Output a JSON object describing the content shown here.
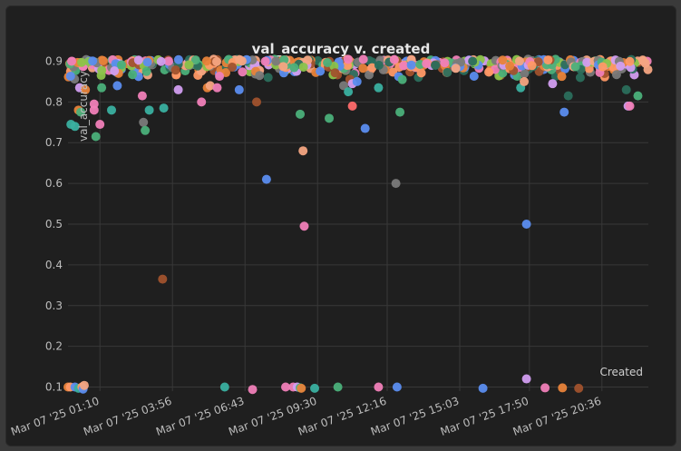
{
  "chart_data": {
    "type": "scatter",
    "title": "val_accuracy v. created",
    "xlabel": "Created",
    "ylabel": "val_accuracy",
    "ylim": [
      0.09,
      0.91
    ],
    "yticks": [
      0.9,
      0.8,
      0.7,
      0.6,
      0.5,
      0.4,
      0.3,
      0.2,
      0.1
    ],
    "xlim": [
      0.0,
      1.0
    ],
    "xticks": [
      {
        "label": "Mar 07 '25 01:10",
        "x": 0.055
      },
      {
        "label": "Mar 07 '25 03:56",
        "x": 0.18
      },
      {
        "label": "Mar 07 '25 06:43",
        "x": 0.305
      },
      {
        "label": "Mar 07 '25 09:30",
        "x": 0.43
      },
      {
        "label": "Mar 07 '25 12:16",
        "x": 0.55
      },
      {
        "label": "Mar 07 '25 15:03",
        "x": 0.675
      },
      {
        "label": "Mar 07 '25 17:50",
        "x": 0.795
      },
      {
        "label": "Mar 07 '25 20:36",
        "x": 0.92
      }
    ],
    "grid": true,
    "palette": [
      "#e8833a",
      "#5b8def",
      "#4bb07a",
      "#f07fb8",
      "#d29ef0",
      "#7a7a7a",
      "#2b6e5c",
      "#a0522d",
      "#f4a582",
      "#8bc34a",
      "#ff9966"
    ],
    "points": [
      {
        "x": 0.005,
        "y": 0.745,
        "c": "#3ab0a0"
      },
      {
        "x": 0.012,
        "y": 0.74,
        "c": "#3ab0a0"
      },
      {
        "x": 0.018,
        "y": 0.78,
        "c": "#e8833a"
      },
      {
        "x": 0.022,
        "y": 0.775,
        "c": "#4bb07a"
      },
      {
        "x": 0.02,
        "y": 0.835,
        "c": "#d29ef0"
      },
      {
        "x": 0.03,
        "y": 0.83,
        "c": "#e8833a"
      },
      {
        "x": 0.045,
        "y": 0.795,
        "c": "#f07fb8"
      },
      {
        "x": 0.045,
        "y": 0.78,
        "c": "#f07fb8"
      },
      {
        "x": 0.048,
        "y": 0.715,
        "c": "#4bb07a"
      },
      {
        "x": 0.055,
        "y": 0.745,
        "c": "#f07fb8"
      },
      {
        "x": 0.058,
        "y": 0.835,
        "c": "#4bb07a"
      },
      {
        "x": 0.075,
        "y": 0.78,
        "c": "#3ab0a0"
      },
      {
        "x": 0.085,
        "y": 0.84,
        "c": "#5b8def"
      },
      {
        "x": 0.128,
        "y": 0.815,
        "c": "#f07fb8"
      },
      {
        "x": 0.13,
        "y": 0.75,
        "c": "#7a7a7a"
      },
      {
        "x": 0.133,
        "y": 0.73,
        "c": "#4bb07a"
      },
      {
        "x": 0.14,
        "y": 0.78,
        "c": "#3ab0a0"
      },
      {
        "x": 0.165,
        "y": 0.785,
        "c": "#3ab0a0"
      },
      {
        "x": 0.163,
        "y": 0.365,
        "c": "#a0522d"
      },
      {
        "x": 0.19,
        "y": 0.83,
        "c": "#d29ef0"
      },
      {
        "x": 0.23,
        "y": 0.8,
        "c": "#f07fb8"
      },
      {
        "x": 0.24,
        "y": 0.835,
        "c": "#e8833a"
      },
      {
        "x": 0.245,
        "y": 0.84,
        "c": "#f4a582"
      },
      {
        "x": 0.257,
        "y": 0.835,
        "c": "#f07fb8"
      },
      {
        "x": 0.295,
        "y": 0.83,
        "c": "#5b8def"
      },
      {
        "x": 0.33,
        "y": 0.865,
        "c": "#7a7a7a"
      },
      {
        "x": 0.342,
        "y": 0.61,
        "c": "#5b8def"
      },
      {
        "x": 0.325,
        "y": 0.8,
        "c": "#a0522d"
      },
      {
        "x": 0.4,
        "y": 0.77,
        "c": "#4bb07a"
      },
      {
        "x": 0.405,
        "y": 0.68,
        "c": "#f4a582"
      },
      {
        "x": 0.407,
        "y": 0.495,
        "c": "#f07fb8"
      },
      {
        "x": 0.45,
        "y": 0.76,
        "c": "#4bb07a"
      },
      {
        "x": 0.475,
        "y": 0.84,
        "c": "#7a7a7a"
      },
      {
        "x": 0.483,
        "y": 0.825,
        "c": "#3ab0a0"
      },
      {
        "x": 0.49,
        "y": 0.79,
        "c": "#ff6b6b"
      },
      {
        "x": 0.49,
        "y": 0.845,
        "c": "#d29ef0"
      },
      {
        "x": 0.498,
        "y": 0.85,
        "c": "#5b8def"
      },
      {
        "x": 0.512,
        "y": 0.735,
        "c": "#5b8def"
      },
      {
        "x": 0.535,
        "y": 0.835,
        "c": "#3ab0a0"
      },
      {
        "x": 0.565,
        "y": 0.6,
        "c": "#7a7a7a"
      },
      {
        "x": 0.572,
        "y": 0.775,
        "c": "#4bb07a"
      },
      {
        "x": 0.576,
        "y": 0.855,
        "c": "#4bb07a"
      },
      {
        "x": 0.78,
        "y": 0.835,
        "c": "#3ab0a0"
      },
      {
        "x": 0.786,
        "y": 0.85,
        "c": "#f4a582"
      },
      {
        "x": 0.79,
        "y": 0.5,
        "c": "#5b8def"
      },
      {
        "x": 0.835,
        "y": 0.845,
        "c": "#d29ef0"
      },
      {
        "x": 0.855,
        "y": 0.775,
        "c": "#5b8def"
      },
      {
        "x": 0.862,
        "y": 0.815,
        "c": "#2b6e5c"
      },
      {
        "x": 0.962,
        "y": 0.83,
        "c": "#2b6e5c"
      },
      {
        "x": 0.965,
        "y": 0.79,
        "c": "#d29ef0"
      },
      {
        "x": 0.968,
        "y": 0.79,
        "c": "#f07fb8"
      },
      {
        "x": 0.982,
        "y": 0.815,
        "c": "#4bb07a"
      },
      {
        "x": 0.0,
        "y": 0.1,
        "c": "#e8833a"
      },
      {
        "x": 0.004,
        "y": 0.1,
        "c": "#ff9966"
      },
      {
        "x": 0.012,
        "y": 0.1,
        "c": "#5b8def"
      },
      {
        "x": 0.018,
        "y": 0.097,
        "c": "#3ab0a0"
      },
      {
        "x": 0.024,
        "y": 0.1,
        "c": "#ff9966"
      },
      {
        "x": 0.026,
        "y": 0.095,
        "c": "#5b8def"
      },
      {
        "x": 0.028,
        "y": 0.104,
        "c": "#f4a582"
      },
      {
        "x": 0.27,
        "y": 0.1,
        "c": "#3ab0a0"
      },
      {
        "x": 0.318,
        "y": 0.094,
        "c": "#f07fb8"
      },
      {
        "x": 0.375,
        "y": 0.1,
        "c": "#f07fb8"
      },
      {
        "x": 0.388,
        "y": 0.1,
        "c": "#f07fb8"
      },
      {
        "x": 0.395,
        "y": 0.1,
        "c": "#d29ef0"
      },
      {
        "x": 0.4,
        "y": 0.098,
        "c": "#4bb07a"
      },
      {
        "x": 0.402,
        "y": 0.097,
        "c": "#e8833a"
      },
      {
        "x": 0.425,
        "y": 0.097,
        "c": "#3ab0a0"
      },
      {
        "x": 0.465,
        "y": 0.1,
        "c": "#4bb07a"
      },
      {
        "x": 0.535,
        "y": 0.1,
        "c": "#f07fb8"
      },
      {
        "x": 0.567,
        "y": 0.1,
        "c": "#5b8def"
      },
      {
        "x": 0.715,
        "y": 0.097,
        "c": "#5b8def"
      },
      {
        "x": 0.79,
        "y": 0.12,
        "c": "#d29ef0"
      },
      {
        "x": 0.822,
        "y": 0.098,
        "c": "#f07fb8"
      },
      {
        "x": 0.852,
        "y": 0.098,
        "c": "#e8833a"
      },
      {
        "x": 0.88,
        "y": 0.097,
        "c": "#a0522d"
      }
    ],
    "band": {
      "ymin": 0.85,
      "ymax": 0.905,
      "count": 520
    }
  }
}
